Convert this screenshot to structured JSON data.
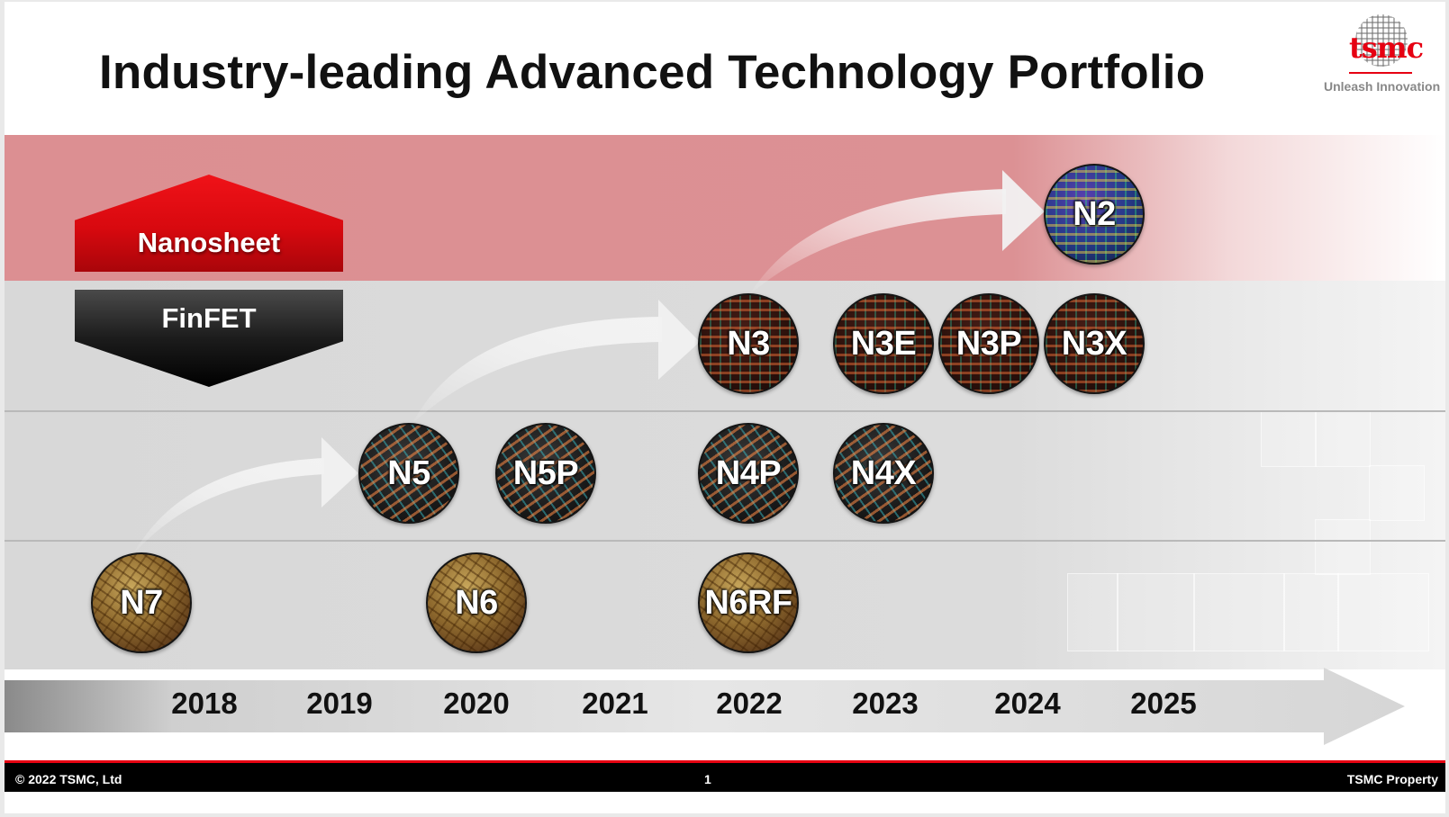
{
  "slide": {
    "title": "Industry-leading Advanced Technology Portfolio",
    "logo": {
      "wordmark": "tsmc",
      "tagline": "Unleash Innovation",
      "brand_color": "#e60012"
    }
  },
  "architectures": {
    "nanosheet_label": "Nanosheet",
    "finfet_label": "FinFET"
  },
  "nodes": [
    {
      "label": "N2",
      "style": "blue"
    },
    {
      "label": "N3",
      "style": "red"
    },
    {
      "label": "N3E",
      "style": "red"
    },
    {
      "label": "N3P",
      "style": "red"
    },
    {
      "label": "N3X",
      "style": "red"
    },
    {
      "label": "N5",
      "style": "dark"
    },
    {
      "label": "N5P",
      "style": "dark"
    },
    {
      "label": "N4P",
      "style": "dark"
    },
    {
      "label": "N4X",
      "style": "dark"
    },
    {
      "label": "N7",
      "style": "gold"
    },
    {
      "label": "N6",
      "style": "gold"
    },
    {
      "label": "N6RF",
      "style": "gold"
    }
  ],
  "timeline": {
    "years": [
      "2018",
      "2019",
      "2020",
      "2021",
      "2022",
      "2023",
      "2024",
      "2025"
    ]
  },
  "footer": {
    "copyright": "© 2022 TSMC, Ltd",
    "page_number": "1",
    "property": "TSMC Property"
  }
}
